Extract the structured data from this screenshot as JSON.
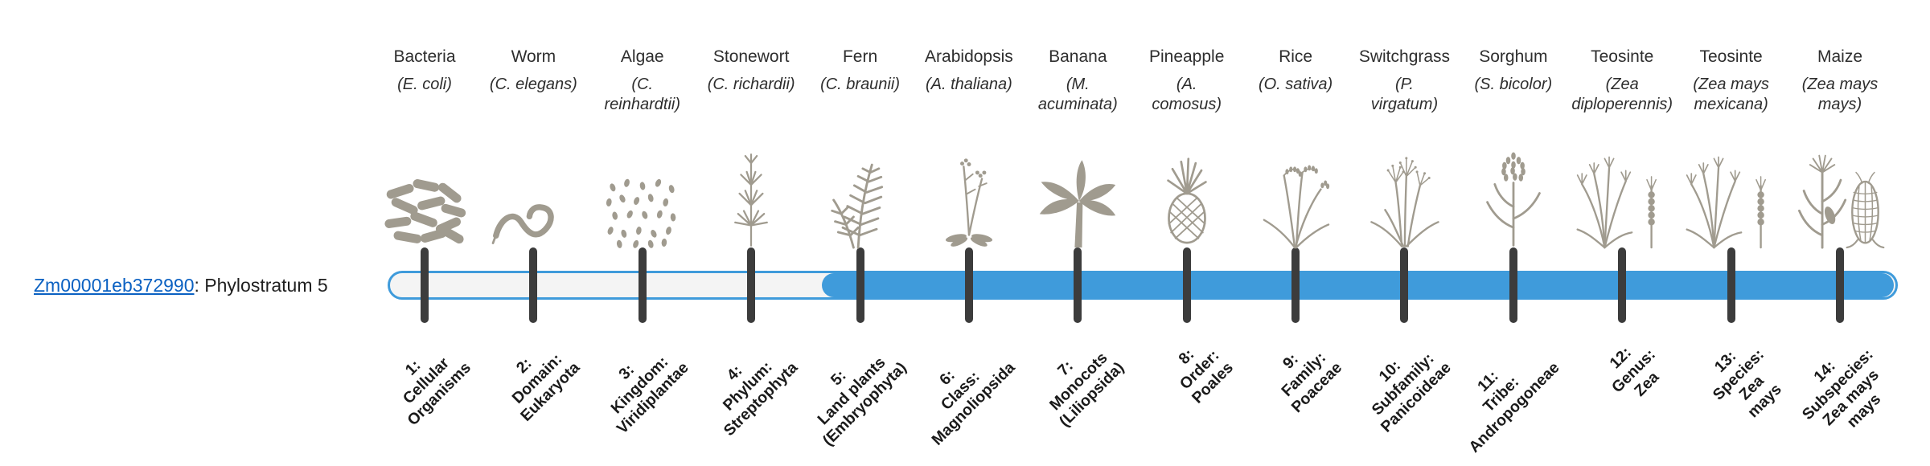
{
  "gene": {
    "id": "Zm00001eb372990",
    "suffix": ": Phylostratum 5",
    "phylostratum": 5
  },
  "colors": {
    "bar_fill": "#3f9bdb",
    "bar_track": "#f4f4f4",
    "bar_border": "#3f9bdb",
    "tick": "#3c3c3c",
    "link": "#0b61c2",
    "text": "#2e2e2e",
    "label": "#1a1a1a",
    "illustration": "#a09b8f"
  },
  "stages": [
    {
      "num": 1,
      "common": "Bacteria",
      "scientific": "(E. coli)",
      "icon": "bacteria",
      "label": "1:\nCellular\nOrganisms"
    },
    {
      "num": 2,
      "common": "Worm",
      "scientific": "(C. elegans)",
      "icon": "worm",
      "label": "2:\nDomain:\nEukaryota"
    },
    {
      "num": 3,
      "common": "Algae",
      "scientific": "(C.\nreinhardtii)",
      "icon": "algae",
      "label": "3:\nKingdom:\nViridiplantae"
    },
    {
      "num": 4,
      "common": "Stonewort",
      "scientific": "(C. richardii)",
      "icon": "stonewort",
      "label": "4:\nPhylum:\nStreptophyta"
    },
    {
      "num": 5,
      "common": "Fern",
      "scientific": "(C. braunii)",
      "icon": "fern",
      "label": "5:\nLand plants\n(Embryophyta)"
    },
    {
      "num": 6,
      "common": "Arabidopsis",
      "scientific": "(A. thaliana)",
      "icon": "arabidopsis",
      "label": "6:\nClass:\nMagnoliopsida"
    },
    {
      "num": 7,
      "common": "Banana",
      "scientific": "(M.\nacuminata)",
      "icon": "banana",
      "label": "7:\nMonocots\n(Liliopsida)"
    },
    {
      "num": 8,
      "common": "Pineapple",
      "scientific": "(A.\ncomosus)",
      "icon": "pineapple",
      "label": "8:\nOrder:\nPoales"
    },
    {
      "num": 9,
      "common": "Rice",
      "scientific": "(O. sativa)",
      "icon": "rice",
      "label": "9:\nFamily:\nPoaceae"
    },
    {
      "num": 10,
      "common": "Switchgrass",
      "scientific": "(P.\nvirgatum)",
      "icon": "switchgrass",
      "label": "10:\nSubfamily:\nPanicoideae"
    },
    {
      "num": 11,
      "common": "Sorghum",
      "scientific": "(S. bicolor)",
      "icon": "sorghum",
      "label": "11:\nTribe:\nAndropogoneae"
    },
    {
      "num": 12,
      "common": "Teosinte",
      "scientific": "(Zea\ndiploperennis)",
      "icon": "teosinte",
      "label": "12:\nGenus:\nZea"
    },
    {
      "num": 13,
      "common": "Teosinte",
      "scientific": "(Zea mays\nmexicana)",
      "icon": "teosinte",
      "label": "13:\nSpecies:\nZea\nmays"
    },
    {
      "num": 14,
      "common": "Maize",
      "scientific": "(Zea mays\nmays)",
      "icon": "maize",
      "label": "14:\nSubspecies:\nZea mays\nmays"
    }
  ]
}
